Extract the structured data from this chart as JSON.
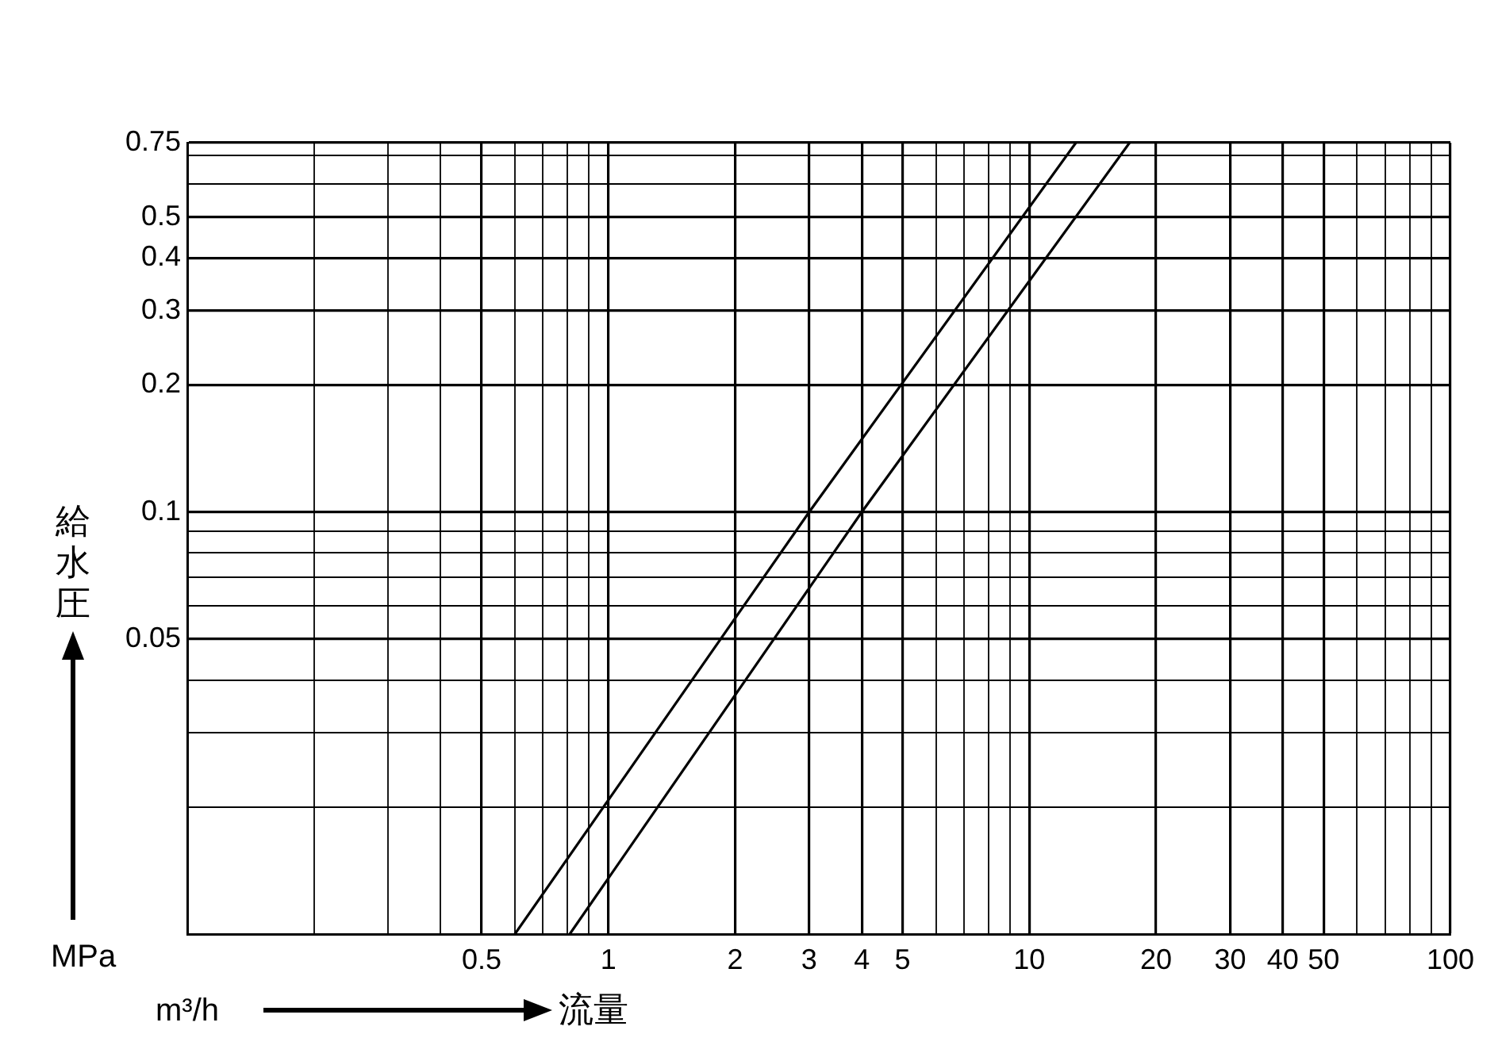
{
  "chart_data": {
    "type": "line",
    "xlabel": "流量",
    "ylabel": "給水圧",
    "annotations": [
      "MPa",
      "m³/h"
    ],
    "log": "xy",
    "grid": true,
    "legend": false,
    "marker": "none",
    "line_style": "solid",
    "xlim": [
      0.1,
      100
    ],
    "ylim": [
      0.01,
      0.75
    ],
    "xticks": [
      {
        "value": 0.1,
        "label": null
      },
      {
        "value": 0.2,
        "label": null
      },
      {
        "value": 0.3,
        "label": null
      },
      {
        "value": 0.4,
        "label": null
      },
      0.5,
      {
        "value": 0.6,
        "label": null
      },
      {
        "value": 0.7,
        "label": null
      },
      {
        "value": 0.8,
        "label": null
      },
      {
        "value": 0.9,
        "label": null
      },
      1,
      2,
      3,
      4,
      5,
      {
        "value": 6,
        "label": null
      },
      {
        "value": 7,
        "label": null
      },
      {
        "value": 8,
        "label": null
      },
      {
        "value": 9,
        "label": null
      },
      10,
      20,
      30,
      40,
      50,
      {
        "value": 60,
        "label": null
      },
      {
        "value": 70,
        "label": null
      },
      {
        "value": 80,
        "label": null
      },
      {
        "value": 90,
        "label": null
      },
      100
    ],
    "yticks": [
      {
        "value": 0.01,
        "label": null
      },
      {
        "value": 0.02,
        "label": null
      },
      {
        "value": 0.03,
        "label": null
      },
      {
        "value": 0.04,
        "label": null
      },
      0.05,
      {
        "value": 0.06,
        "label": null
      },
      {
        "value": 0.07,
        "label": null
      },
      {
        "value": 0.08,
        "label": null
      },
      {
        "value": 0.09,
        "label": null
      },
      0.1,
      0.2,
      0.3,
      0.4,
      0.5,
      {
        "value": 0.6,
        "label": null
      },
      {
        "value": 0.7,
        "label": null
      },
      0.75
    ],
    "series": [
      {
        "color": "#000000",
        "x": [
          0.6,
          3,
          12.9
        ],
        "values": [
          0.01,
          0.1,
          0.75
        ]
      },
      {
        "color": "#000000",
        "x": [
          0.81,
          4,
          17.3
        ],
        "values": [
          0.01,
          0.1,
          0.75
        ]
      }
    ]
  }
}
